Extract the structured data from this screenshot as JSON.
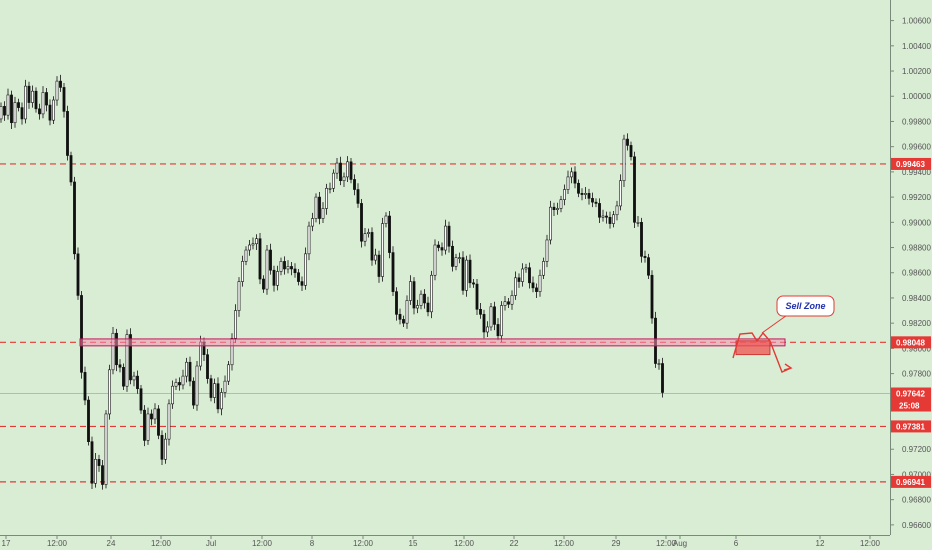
{
  "chart_data": {
    "type": "candlestick",
    "price_axis": {
      "ylim": [
        0.9648,
        1.007
      ],
      "tick_labels": [
        "1.00600",
        "1.00400",
        "1.00200",
        "1.00000",
        "0.99800",
        "0.99600",
        "0.99400",
        "0.99200",
        "0.99000",
        "0.98800",
        "0.98600",
        "0.98400",
        "0.98200",
        "0.98000",
        "0.97800",
        "0.97600",
        "0.97400",
        "0.97200",
        "0.97000",
        "0.96800",
        "0.96600"
      ]
    },
    "time_axis": {
      "tick_labels": [
        "17",
        "12:00",
        "24",
        "12:00",
        "Jul",
        "12:00",
        "8",
        "12:00",
        "15",
        "12:00",
        "22",
        "12:00",
        "29",
        "12:00",
        "Aug",
        "6",
        "12",
        "12:00"
      ]
    },
    "levels": [
      {
        "label": "0.99463",
        "value": 0.99463,
        "color": "#e53935",
        "style": "dashed"
      },
      {
        "label": "0.98048",
        "value": 0.98048,
        "color": "#e53935",
        "style": "dashed"
      },
      {
        "label": "0.97381",
        "value": 0.97381,
        "color": "#e53935",
        "style": "dashed"
      },
      {
        "label": "0.96941",
        "value": 0.96941,
        "color": "#e53935",
        "style": "dashed"
      }
    ],
    "current_price": {
      "label": "0.97642",
      "value": 0.97642,
      "countdown": "25:08",
      "color": "#e53935"
    },
    "support_zone": {
      "low": 0.9802,
      "high": 0.98075,
      "color": "#e91e63"
    },
    "sell_zone": {
      "label": "Sell Zone",
      "low": 0.9795,
      "high": 0.9806
    },
    "closes": [
      0.9992,
      0.9985,
      1.0001,
      0.9979,
      0.9995,
      0.9991,
      0.9982,
      1.0008,
      0.9995,
      1.0004,
      0.999,
      0.9986,
      1.0003,
      0.9993,
      0.9981,
      0.9997,
      1.0012,
      1.0007,
      0.9988,
      0.9953,
      0.9932,
      0.9875,
      0.9842,
      0.9781,
      0.9759,
      0.9726,
      0.9693,
      0.9712,
      0.9707,
      0.9692,
      0.9748,
      0.9783,
      0.9812,
      0.9787,
      0.9785,
      0.977,
      0.9811,
      0.9775,
      0.9778,
      0.9768,
      0.9751,
      0.9727,
      0.9748,
      0.9744,
      0.9752,
      0.9731,
      0.9712,
      0.9728,
      0.9756,
      0.977,
      0.9773,
      0.9771,
      0.9778,
      0.9789,
      0.9774,
      0.9755,
      0.9786,
      0.9805,
      0.9795,
      0.9776,
      0.9761,
      0.9772,
      0.9752,
      0.9765,
      0.9774,
      0.9787,
      0.9808,
      0.983,
      0.9853,
      0.9869,
      0.9878,
      0.9882,
      0.9883,
      0.9887,
      0.9855,
      0.9847,
      0.9878,
      0.9862,
      0.985,
      0.9861,
      0.9869,
      0.9863,
      0.9865,
      0.9863,
      0.986,
      0.9853,
      0.985,
      0.9875,
      0.9897,
      0.9903,
      0.992,
      0.9903,
      0.9911,
      0.9927,
      0.9927,
      0.9939,
      0.9947,
      0.9933,
      0.9936,
      0.9948,
      0.9934,
      0.9926,
      0.9915,
      0.9885,
      0.9891,
      0.9892,
      0.987,
      0.9874,
      0.9857,
      0.9899,
      0.9905,
      0.9876,
      0.9845,
      0.9827,
      0.9823,
      0.982,
      0.9838,
      0.9853,
      0.9832,
      0.9834,
      0.9843,
      0.9836,
      0.9829,
      0.9858,
      0.9882,
      0.988,
      0.9878,
      0.9897,
      0.9881,
      0.9865,
      0.9872,
      0.9872,
      0.9846,
      0.987,
      0.9852,
      0.9851,
      0.9831,
      0.9827,
      0.9813,
      0.9817,
      0.9833,
      0.9819,
      0.981,
      0.9834,
      0.9837,
      0.9835,
      0.9842,
      0.9856,
      0.9853,
      0.9863,
      0.9864,
      0.9852,
      0.9848,
      0.9845,
      0.9858,
      0.9869,
      0.9886,
      0.9912,
      0.991,
      0.9911,
      0.9918,
      0.9926,
      0.9936,
      0.994,
      0.9931,
      0.9923,
      0.9922,
      0.9923,
      0.9919,
      0.9916,
      0.9915,
      0.9904,
      0.9905,
      0.9904,
      0.9899,
      0.9906,
      0.9913,
      0.9933,
      0.9966,
      0.9961,
      0.9952,
      0.99,
      0.99,
      0.9873,
      0.9872,
      0.9858,
      0.9824,
      0.9788,
      0.9788,
      0.9765
    ]
  }
}
